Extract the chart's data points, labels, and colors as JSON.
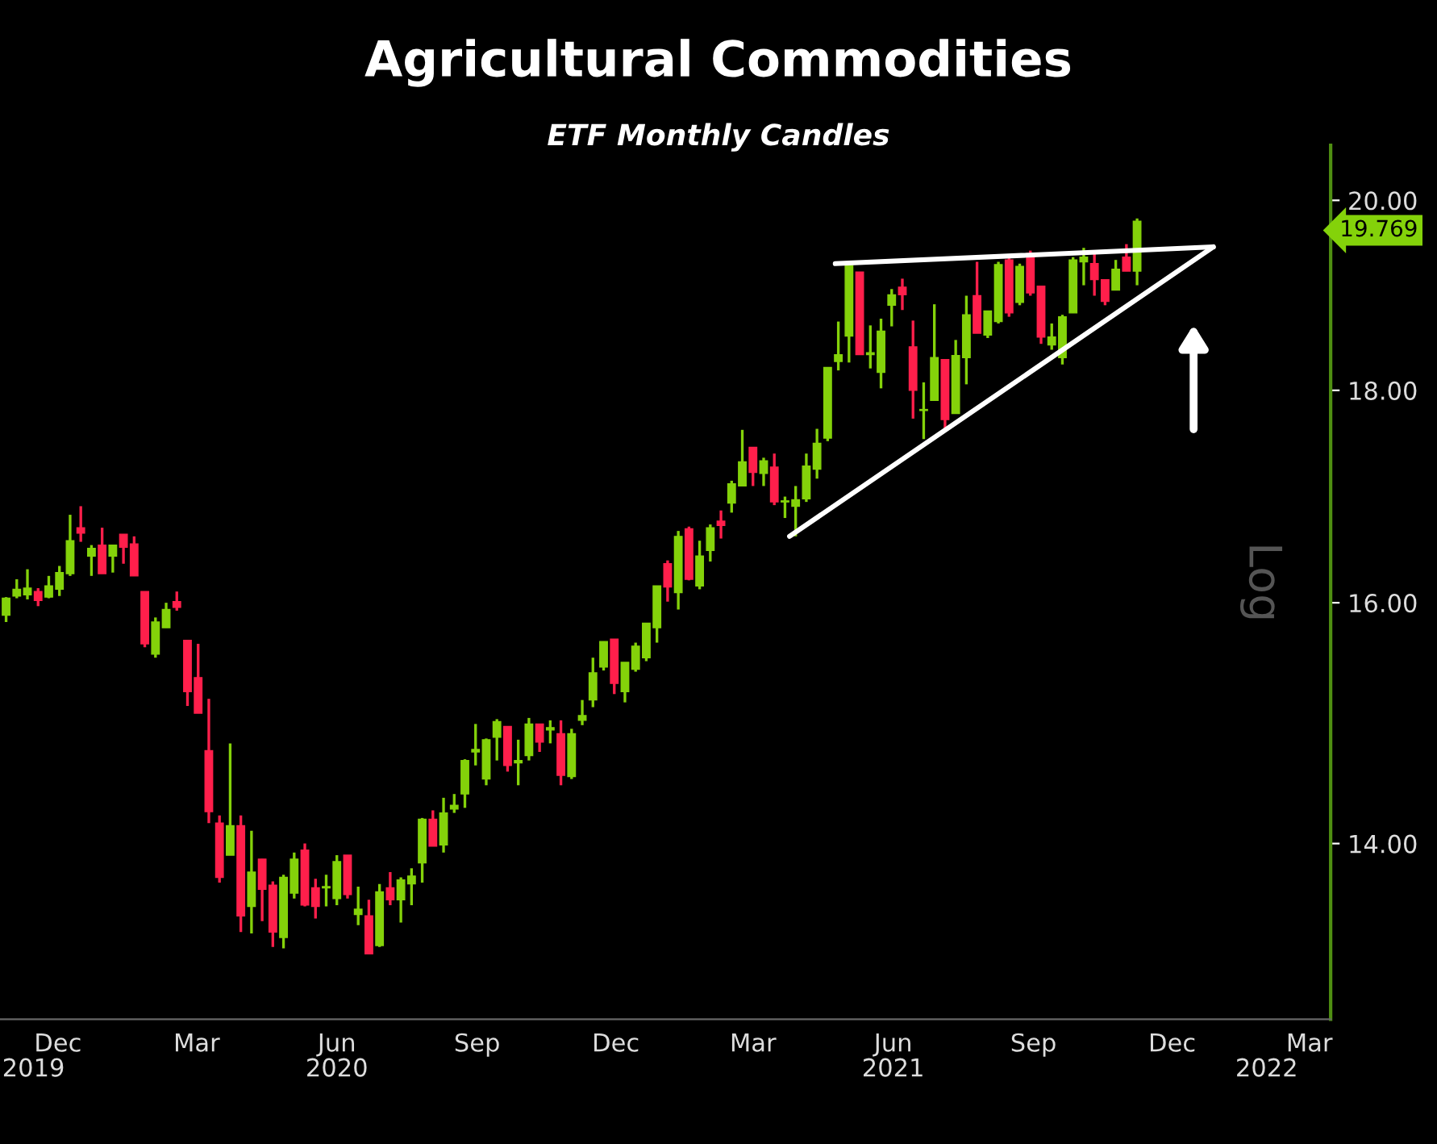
{
  "chart_data": {
    "type": "candlestick",
    "title": "Agricultural Commodities",
    "subtitle": "ETF Monthly Candles",
    "ylabel": "Log",
    "log": true,
    "xlim": [
      "2019-10-24",
      "2022-03-15"
    ],
    "ylim": [
      12.7,
      20.62
    ],
    "xticks": [
      {
        "value": "2019-12-01",
        "label": "Dec"
      },
      {
        "value": "2020-03-01",
        "label": "Mar"
      },
      {
        "value": "2020-06-01",
        "label": "Jun"
      },
      {
        "value": "2020-09-01",
        "label": "Sep"
      },
      {
        "value": "2020-12-01",
        "label": "Dec"
      },
      {
        "value": "2021-03-01",
        "label": "Mar"
      },
      {
        "value": "2021-06-01",
        "label": "Jun"
      },
      {
        "value": "2021-09-01",
        "label": "Sep"
      },
      {
        "value": "2021-12-01",
        "label": "Dec"
      },
      {
        "value": "2022-03-01",
        "label": "Mar"
      }
    ],
    "x2ticks": [
      {
        "value": "2019-11-15",
        "label": "2019"
      },
      {
        "value": "2020-06-01",
        "label": "2020"
      },
      {
        "value": "2021-06-01",
        "label": "2021"
      },
      {
        "value": "2022-02-01",
        "label": "2022"
      }
    ],
    "yticks": [
      {
        "value": 14,
        "label": "14.00"
      },
      {
        "value": 16,
        "label": "16.00"
      },
      {
        "value": 18,
        "label": "18.00"
      },
      {
        "value": 20,
        "label": "20.00"
      }
    ],
    "annotations": [
      "19.769"
    ],
    "x2lim": [
      "2019-10-24",
      "2022-03-15"
    ],
    "series": [
      {
        "color": "#84d20a",
        "x": [
          "2019-10-28",
          "2019-11-04",
          "2019-11-11",
          "2019-11-25",
          "2019-12-02",
          "2019-12-09",
          "2019-12-23",
          "2020-01-06",
          "2020-02-03",
          "2020-02-10",
          "2020-03-23",
          "2020-04-06",
          "2020-04-27",
          "2020-05-04",
          "2020-05-25",
          "2020-06-01",
          "2020-06-15",
          "2020-06-29",
          "2020-07-13",
          "2020-07-20",
          "2020-07-27",
          "2020-08-10",
          "2020-08-17",
          "2020-08-24",
          "2020-08-31",
          "2020-09-07",
          "2020-09-14",
          "2020-09-28",
          "2020-10-05",
          "2020-10-19",
          "2020-11-02",
          "2020-11-09",
          "2020-11-16",
          "2020-11-23",
          "2020-12-07",
          "2020-12-14",
          "2020-12-21",
          "2020-12-28",
          "2021-01-11",
          "2021-01-25",
          "2021-02-01",
          "2021-02-15",
          "2021-02-22",
          "2021-03-08",
          "2021-03-22",
          "2021-03-29",
          "2021-04-05",
          "2021-04-12",
          "2021-04-19",
          "2021-04-26",
          "2021-05-03",
          "2021-05-17",
          "2021-05-24",
          "2021-05-31",
          "2021-06-21",
          "2021-06-28",
          "2021-07-12",
          "2021-07-19",
          "2021-08-02",
          "2021-08-09",
          "2021-08-23",
          "2021-09-13",
          "2021-09-20",
          "2021-09-27",
          "2021-10-04",
          "2021-10-25",
          "2021-11-08"
        ],
        "ohlc": [
          [
            15.89,
            16.05,
            15.83,
            16.04
          ],
          [
            16.06,
            16.21,
            16.04,
            16.12
          ],
          [
            16.07,
            16.3,
            16.03,
            16.13
          ],
          [
            16.05,
            16.24,
            16.04,
            16.15
          ],
          [
            16.12,
            16.33,
            16.06,
            16.27
          ],
          [
            16.26,
            16.8,
            16.24,
            16.56
          ],
          [
            16.42,
            16.52,
            16.24,
            16.49
          ],
          [
            16.42,
            16.52,
            16.27,
            16.52
          ],
          [
            15.55,
            15.87,
            15.52,
            15.83
          ],
          [
            15.78,
            16.0,
            15.78,
            15.94
          ],
          [
            13.91,
            14.8,
            13.91,
            14.14
          ],
          [
            13.52,
            14.1,
            13.32,
            13.78
          ],
          [
            13.29,
            13.76,
            13.21,
            13.74
          ],
          [
            13.62,
            13.93,
            13.58,
            13.88
          ],
          [
            13.66,
            13.76,
            13.52,
            13.67
          ],
          [
            13.58,
            13.91,
            13.53,
            13.86
          ],
          [
            13.46,
            13.67,
            13.38,
            13.5
          ],
          [
            13.23,
            13.69,
            13.22,
            13.63
          ],
          [
            13.57,
            13.74,
            13.4,
            13.72
          ],
          [
            13.69,
            13.81,
            13.53,
            13.75
          ],
          [
            13.85,
            14.2,
            13.7,
            14.19
          ],
          [
            13.99,
            14.36,
            13.93,
            14.24
          ],
          [
            14.27,
            14.39,
            14.24,
            14.3
          ],
          [
            14.39,
            14.67,
            14.28,
            14.66
          ],
          [
            14.73,
            14.96,
            14.62,
            14.75
          ],
          [
            14.51,
            14.84,
            14.46,
            14.83
          ],
          [
            14.85,
            15.0,
            14.66,
            14.98
          ],
          [
            14.64,
            14.83,
            14.46,
            14.66
          ],
          [
            14.7,
            15.01,
            14.66,
            14.96
          ],
          [
            14.91,
            14.99,
            14.8,
            14.93
          ],
          [
            14.53,
            14.92,
            14.51,
            14.88
          ],
          [
            14.99,
            15.16,
            14.95,
            15.03
          ],
          [
            15.16,
            15.52,
            15.1,
            15.39
          ],
          [
            15.44,
            15.66,
            15.41,
            15.66
          ],
          [
            15.23,
            15.48,
            15.14,
            15.48
          ],
          [
            15.42,
            15.65,
            15.4,
            15.62
          ],
          [
            15.52,
            15.82,
            15.49,
            15.82
          ],
          [
            15.78,
            16.15,
            15.65,
            16.15
          ],
          [
            16.09,
            16.65,
            15.94,
            16.6
          ],
          [
            16.15,
            16.56,
            16.12,
            16.42
          ],
          [
            16.47,
            16.71,
            16.37,
            16.68
          ],
          [
            16.91,
            17.12,
            16.82,
            17.09
          ],
          [
            17.07,
            17.61,
            17.07,
            17.3
          ],
          [
            17.19,
            17.34,
            17.07,
            17.31
          ],
          [
            16.92,
            16.97,
            16.77,
            16.93
          ],
          [
            16.88,
            17.07,
            16.6,
            16.94
          ],
          [
            16.95,
            17.38,
            16.92,
            17.26
          ],
          [
            17.23,
            17.62,
            17.14,
            17.48
          ],
          [
            17.53,
            18.23,
            17.5,
            18.23
          ],
          [
            18.29,
            18.7,
            18.2,
            18.36
          ],
          [
            18.55,
            19.29,
            18.28,
            19.29
          ],
          [
            18.36,
            18.66,
            18.22,
            18.38
          ],
          [
            18.18,
            18.73,
            18.02,
            18.6
          ],
          [
            18.87,
            19.04,
            18.65,
            18.98
          ],
          [
            17.8,
            18.08,
            17.52,
            17.81
          ],
          [
            17.9,
            18.88,
            17.9,
            18.33
          ],
          [
            17.77,
            18.51,
            17.77,
            18.35
          ],
          [
            18.33,
            18.97,
            18.06,
            18.77
          ],
          [
            18.56,
            18.81,
            18.53,
            18.81
          ],
          [
            18.7,
            19.33,
            18.68,
            19.3
          ],
          [
            18.9,
            19.31,
            18.87,
            19.28
          ],
          [
            18.46,
            18.68,
            18.41,
            18.54
          ],
          [
            18.33,
            18.77,
            18.26,
            18.75
          ],
          [
            18.79,
            19.38,
            18.79,
            19.35
          ],
          [
            19.33,
            19.48,
            19.08,
            19.38
          ],
          [
            19.03,
            19.35,
            19.03,
            19.25
          ],
          [
            19.23,
            19.8,
            19.08,
            19.769
          ]
        ]
      },
      {
        "color": "#ff1f4b",
        "x": [
          "2019-11-18",
          "2019-12-16",
          "2019-12-30",
          "2020-01-13",
          "2020-01-20",
          "2020-01-27",
          "2020-02-17",
          "2020-02-24",
          "2020-03-02",
          "2020-03-09",
          "2020-03-16",
          "2020-03-30",
          "2020-04-13",
          "2020-04-20",
          "2020-05-11",
          "2020-05-18",
          "2020-06-08",
          "2020-06-22",
          "2020-07-06",
          "2020-08-03",
          "2020-09-21",
          "2020-10-12",
          "2020-10-26",
          "2020-11-30",
          "2021-01-04",
          "2021-01-18",
          "2021-02-08",
          "2021-03-01",
          "2021-03-15",
          "2021-05-10",
          "2021-06-07",
          "2021-06-14",
          "2021-07-05",
          "2021-07-26",
          "2021-08-16",
          "2021-08-30",
          "2021-09-06",
          "2021-10-11",
          "2021-10-18",
          "2021-11-01"
        ],
        "ohlc": [
          [
            16.1,
            16.13,
            15.97,
            16.02
          ],
          [
            16.68,
            16.88,
            16.55,
            16.63
          ],
          [
            16.52,
            16.68,
            16.26,
            16.26
          ],
          [
            16.62,
            16.62,
            16.35,
            16.5
          ],
          [
            16.53,
            16.6,
            16.24,
            16.24
          ],
          [
            16.1,
            16.1,
            15.61,
            15.64
          ],
          [
            16.01,
            16.1,
            15.93,
            15.96
          ],
          [
            15.67,
            15.67,
            15.11,
            15.23
          ],
          [
            15.35,
            15.64,
            15.05,
            15.05
          ],
          [
            14.74,
            15.17,
            14.16,
            14.25
          ],
          [
            14.16,
            14.22,
            13.7,
            13.74
          ],
          [
            14.14,
            14.22,
            13.33,
            13.45
          ],
          [
            13.88,
            13.88,
            13.41,
            13.65
          ],
          [
            13.68,
            13.71,
            13.22,
            13.33
          ],
          [
            13.95,
            14.0,
            13.52,
            13.53
          ],
          [
            13.66,
            13.73,
            13.43,
            13.52
          ],
          [
            13.91,
            13.91,
            13.58,
            13.61
          ],
          [
            13.45,
            13.57,
            13.17,
            13.17
          ],
          [
            13.66,
            13.78,
            13.53,
            13.57
          ],
          [
            14.19,
            14.26,
            13.98,
            13.98
          ],
          [
            14.94,
            14.94,
            14.57,
            14.62
          ],
          [
            14.96,
            14.96,
            14.73,
            14.81
          ],
          [
            14.88,
            14.99,
            14.46,
            14.54
          ],
          [
            15.68,
            15.68,
            15.21,
            15.3
          ],
          [
            16.35,
            16.38,
            16.01,
            16.14
          ],
          [
            16.67,
            16.69,
            16.2,
            16.21
          ],
          [
            16.74,
            16.84,
            16.58,
            16.7
          ],
          [
            17.44,
            17.44,
            17.07,
            17.2
          ],
          [
            17.25,
            17.38,
            16.89,
            16.92
          ],
          [
            19.22,
            19.22,
            18.36,
            18.36
          ],
          [
            19.06,
            19.15,
            18.82,
            18.98
          ],
          [
            18.44,
            18.71,
            17.72,
            18.0
          ],
          [
            18.31,
            18.31,
            17.62,
            17.71
          ],
          [
            18.97,
            19.33,
            18.58,
            18.58
          ],
          [
            19.35,
            19.38,
            18.75,
            18.79
          ],
          [
            19.42,
            19.45,
            18.97,
            19.0
          ],
          [
            19.07,
            19.07,
            18.47,
            18.54
          ],
          [
            19.31,
            19.42,
            18.97,
            19.14
          ],
          [
            19.14,
            19.14,
            18.87,
            18.91
          ],
          [
            19.38,
            19.52,
            19.23,
            19.23
          ]
        ]
      },
      {
        "type": "line",
        "color": "#ffffff",
        "x": [
          "2021-03-25",
          "2021-12-28"
        ],
        "values": [
          16.6,
          19.49
        ]
      },
      {
        "type": "line",
        "color": "#ffffff",
        "x": [
          "2021-04-24",
          "2021-12-28"
        ],
        "values": [
          19.31,
          19.49
        ]
      }
    ]
  }
}
